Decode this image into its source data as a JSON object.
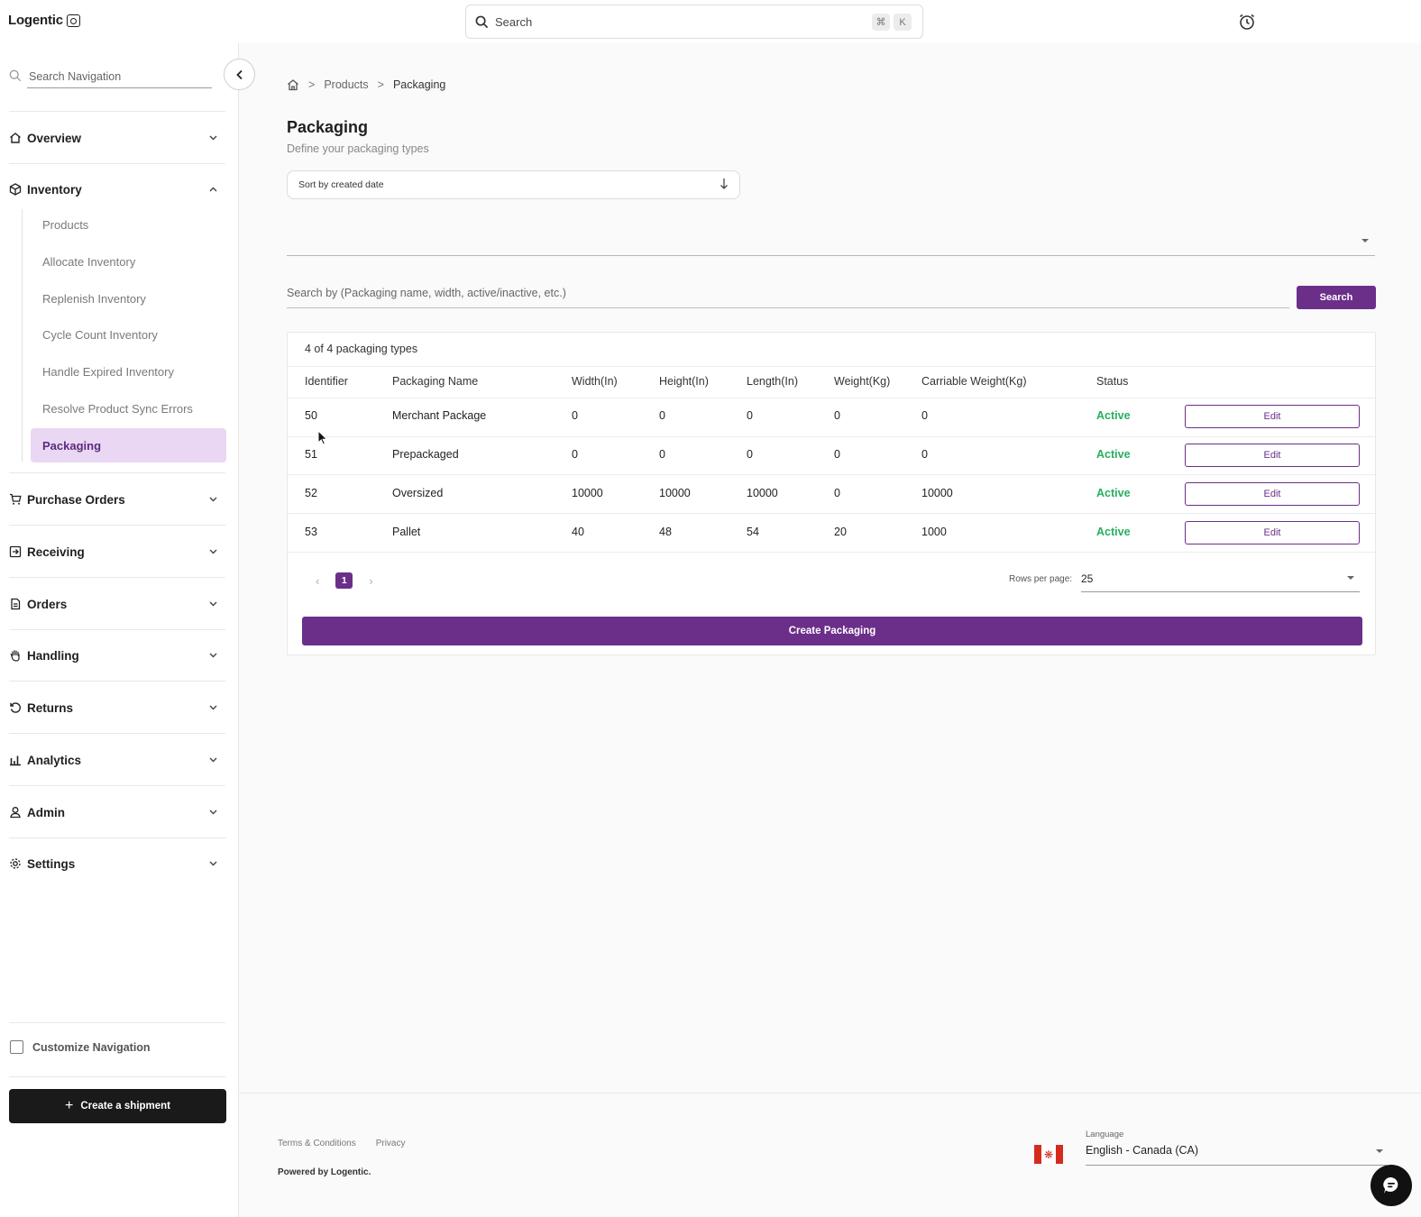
{
  "app": {
    "brand": "Logentic"
  },
  "topbar": {
    "search_label": "Search",
    "kbd_cmd": "⌘",
    "kbd_k": "K"
  },
  "sidebar": {
    "search_placeholder": "Search Navigation",
    "groups": [
      {
        "label": "Overview",
        "icon": "home-icon"
      },
      {
        "label": "Inventory",
        "icon": "box-icon",
        "expanded": true,
        "items": [
          {
            "label": "Products"
          },
          {
            "label": "Allocate Inventory"
          },
          {
            "label": "Replenish Inventory"
          },
          {
            "label": "Cycle Count Inventory"
          },
          {
            "label": "Handle Expired Inventory"
          },
          {
            "label": "Resolve Product Sync Errors"
          },
          {
            "label": "Packaging",
            "active": true
          }
        ]
      },
      {
        "label": "Purchase Orders",
        "icon": "cart-icon"
      },
      {
        "label": "Receiving",
        "icon": "receiving-icon"
      },
      {
        "label": "Orders",
        "icon": "document-icon"
      },
      {
        "label": "Handling",
        "icon": "hand-icon"
      },
      {
        "label": "Returns",
        "icon": "return-icon"
      },
      {
        "label": "Analytics",
        "icon": "bar-chart-icon"
      },
      {
        "label": "Admin",
        "icon": "user-icon"
      },
      {
        "label": "Settings",
        "icon": "gear-icon"
      }
    ],
    "customize_label": "Customize Navigation",
    "create_shipment_label": "Create a shipment"
  },
  "breadcrumb": {
    "items": [
      "Products",
      "Packaging"
    ]
  },
  "page": {
    "title": "Packaging",
    "subtitle": "Define your packaging types",
    "sort_label": "Sort by created date",
    "search_placeholder": "Search by (Packaging name, width, active/inactive, etc.)",
    "search_button": "Search"
  },
  "table": {
    "count_label": "4 of 4 packaging types",
    "columns": [
      "Identifier",
      "Packaging Name",
      "Width(In)",
      "Height(In)",
      "Length(In)",
      "Weight(Kg)",
      "Carriable Weight(Kg)",
      "Status"
    ],
    "rows": [
      {
        "id": "50",
        "name": "Merchant Package",
        "width": "0",
        "height": "0",
        "length": "0",
        "weight": "0",
        "carriable": "0",
        "status": "Active"
      },
      {
        "id": "51",
        "name": "Prepackaged",
        "width": "0",
        "height": "0",
        "length": "0",
        "weight": "0",
        "carriable": "0",
        "status": "Active"
      },
      {
        "id": "52",
        "name": "Oversized",
        "width": "10000",
        "height": "10000",
        "length": "10000",
        "weight": "0",
        "carriable": "10000",
        "status": "Active"
      },
      {
        "id": "53",
        "name": "Pallet",
        "width": "40",
        "height": "48",
        "length": "54",
        "weight": "20",
        "carriable": "1000",
        "status": "Active"
      }
    ],
    "edit_label": "Edit",
    "current_page": "1",
    "rows_per_page_label": "Rows per page:",
    "rows_per_page": "25",
    "create_label": "Create Packaging"
  },
  "footer": {
    "terms": "Terms & Conditions",
    "privacy": "Privacy",
    "powered": "Powered by Logentic.",
    "language_label": "Language",
    "language_value": "English - Canada (CA)"
  },
  "colors": {
    "accent": "#6b2f8a",
    "active_nav_bg": "#ead7f3",
    "status_active": "#27ae60"
  }
}
